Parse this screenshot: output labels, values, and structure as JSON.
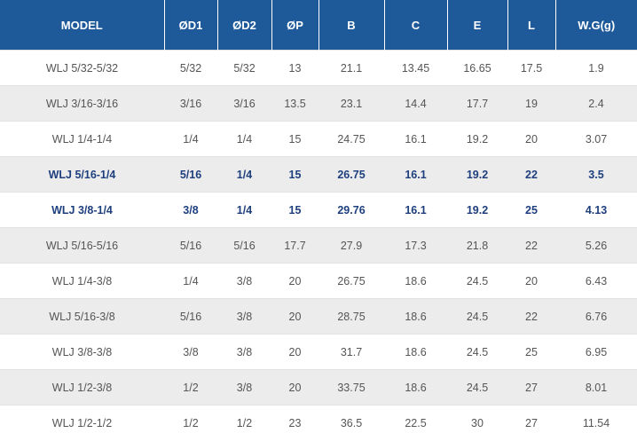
{
  "table": {
    "headers": [
      "MODEL",
      "ØD1",
      "ØD2",
      "ØP",
      "B",
      "C",
      "E",
      "L",
      "W.G(g)"
    ],
    "rows": [
      {
        "highlight": false,
        "cells": [
          "WLJ 5/32-5/32",
          "5/32",
          "5/32",
          "13",
          "21.1",
          "13.45",
          "16.65",
          "17.5",
          "1.9"
        ]
      },
      {
        "highlight": false,
        "cells": [
          "WLJ 3/16-3/16",
          "3/16",
          "3/16",
          "13.5",
          "23.1",
          "14.4",
          "17.7",
          "19",
          "2.4"
        ]
      },
      {
        "highlight": false,
        "cells": [
          "WLJ 1/4-1/4",
          "1/4",
          "1/4",
          "15",
          "24.75",
          "16.1",
          "19.2",
          "20",
          "3.07"
        ]
      },
      {
        "highlight": true,
        "cells": [
          "WLJ 5/16-1/4",
          "5/16",
          "1/4",
          "15",
          "26.75",
          "16.1",
          "19.2",
          "22",
          "3.5"
        ]
      },
      {
        "highlight": true,
        "cells": [
          "WLJ 3/8-1/4",
          "3/8",
          "1/4",
          "15",
          "29.76",
          "16.1",
          "19.2",
          "25",
          "4.13"
        ]
      },
      {
        "highlight": false,
        "cells": [
          "WLJ 5/16-5/16",
          "5/16",
          "5/16",
          "17.7",
          "27.9",
          "17.3",
          "21.8",
          "22",
          "5.26"
        ]
      },
      {
        "highlight": false,
        "cells": [
          "WLJ 1/4-3/8",
          "1/4",
          "3/8",
          "20",
          "26.75",
          "18.6",
          "24.5",
          "20",
          "6.43"
        ]
      },
      {
        "highlight": false,
        "cells": [
          "WLJ 5/16-3/8",
          "5/16",
          "3/8",
          "20",
          "28.75",
          "18.6",
          "24.5",
          "22",
          "6.76"
        ]
      },
      {
        "highlight": false,
        "cells": [
          "WLJ 3/8-3/8",
          "3/8",
          "3/8",
          "20",
          "31.7",
          "18.6",
          "24.5",
          "25",
          "6.95"
        ]
      },
      {
        "highlight": false,
        "cells": [
          "WLJ 1/2-3/8",
          "1/2",
          "3/8",
          "20",
          "33.75",
          "18.6",
          "24.5",
          "27",
          "8.01"
        ]
      },
      {
        "highlight": false,
        "cells": [
          "WLJ 1/2-1/2",
          "1/2",
          "1/2",
          "23",
          "36.5",
          "22.5",
          "30",
          "27",
          "11.54"
        ]
      }
    ]
  },
  "colors": {
    "header_background": "#1e5a9a",
    "header_text": "#ffffff",
    "highlight_text": "#1e3f7e",
    "stripe_background": "#ececec",
    "body_text": "#555555"
  }
}
